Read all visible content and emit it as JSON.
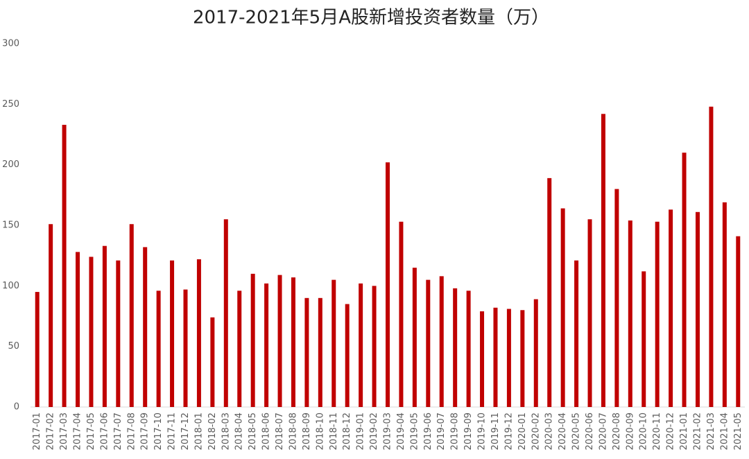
{
  "chart_data": {
    "type": "bar",
    "title": "2017-2021年5月A股新增投资者数量（万）",
    "categories": [
      "2017-01",
      "2017-02",
      "2017-03",
      "2017-04",
      "2017-05",
      "2017-06",
      "2017-07",
      "2017-08",
      "2017-09",
      "2017-10",
      "2017-11",
      "2017-12",
      "2018-01",
      "2018-02",
      "2018-03",
      "2018-04",
      "2018-05",
      "2018-06",
      "2018-07",
      "2018-08",
      "2018-09",
      "2018-10",
      "2018-11",
      "2018-12",
      "2019-01",
      "2019-02",
      "2019-03",
      "2019-04",
      "2019-05",
      "2019-06",
      "2019-07",
      "2019-08",
      "2019-09",
      "2019-10",
      "2019-11",
      "2019-12",
      "2020-01",
      "2020-02",
      "2020-03",
      "2020-04",
      "2020-05",
      "2020-06",
      "2020-07",
      "2020-08",
      "2020-09",
      "2020-10",
      "2020-11",
      "2020-12",
      "2021-01",
      "2021-02",
      "2021-03",
      "2021-04",
      "2021-05"
    ],
    "values": [
      95,
      151,
      233,
      128,
      124,
      133,
      121,
      151,
      132,
      96,
      121,
      97,
      122,
      74,
      155,
      96,
      110,
      102,
      109,
      107,
      90,
      90,
      105,
      85,
      102,
      100,
      202,
      153,
      115,
      105,
      108,
      98,
      96,
      79,
      82,
      81,
      80,
      89,
      189,
      164,
      121,
      155,
      242,
      180,
      154,
      112,
      153,
      163,
      210,
      161,
      248,
      169,
      141
    ],
    "color": "#c00000",
    "ylim": [
      0,
      300
    ],
    "yticks": [
      0,
      50,
      100,
      150,
      200,
      250,
      300
    ],
    "grid": false
  }
}
